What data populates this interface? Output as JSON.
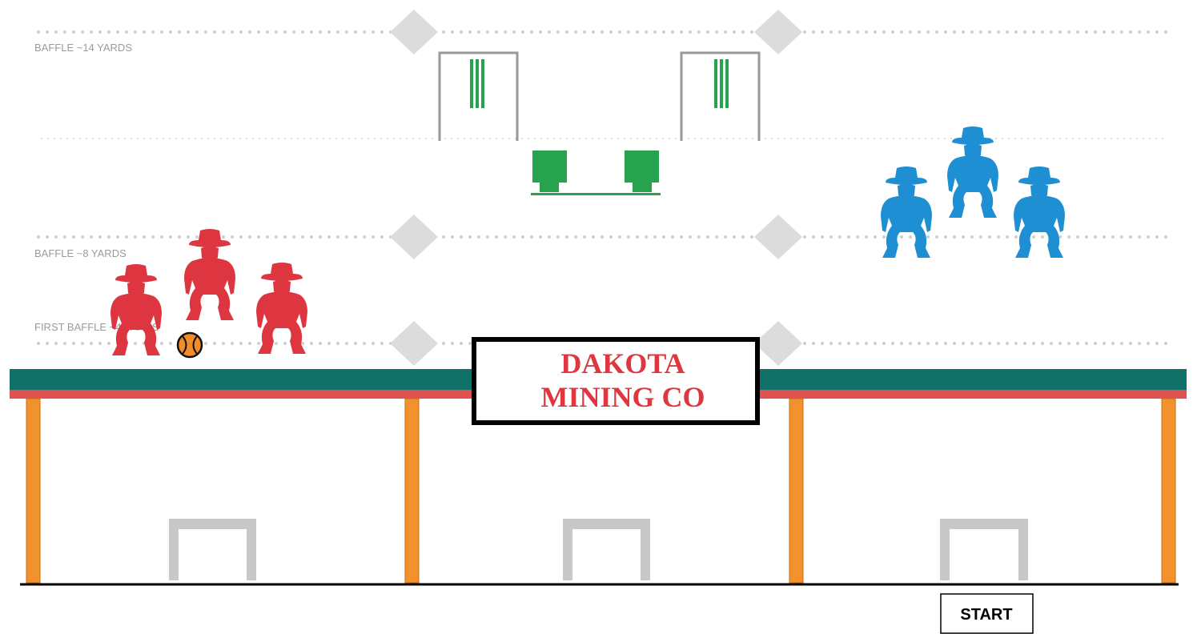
{
  "baffles": [
    {
      "label": "BAFFLE ~14 YARDS"
    },
    {
      "label": "BAFFLE ~8 YARDS"
    },
    {
      "label": "FIRST BAFFLE ~4 YARDS"
    }
  ],
  "sign": {
    "lines": [
      "DAKOTA",
      "MINING CO"
    ]
  },
  "start_button": {
    "label": "START"
  }
}
